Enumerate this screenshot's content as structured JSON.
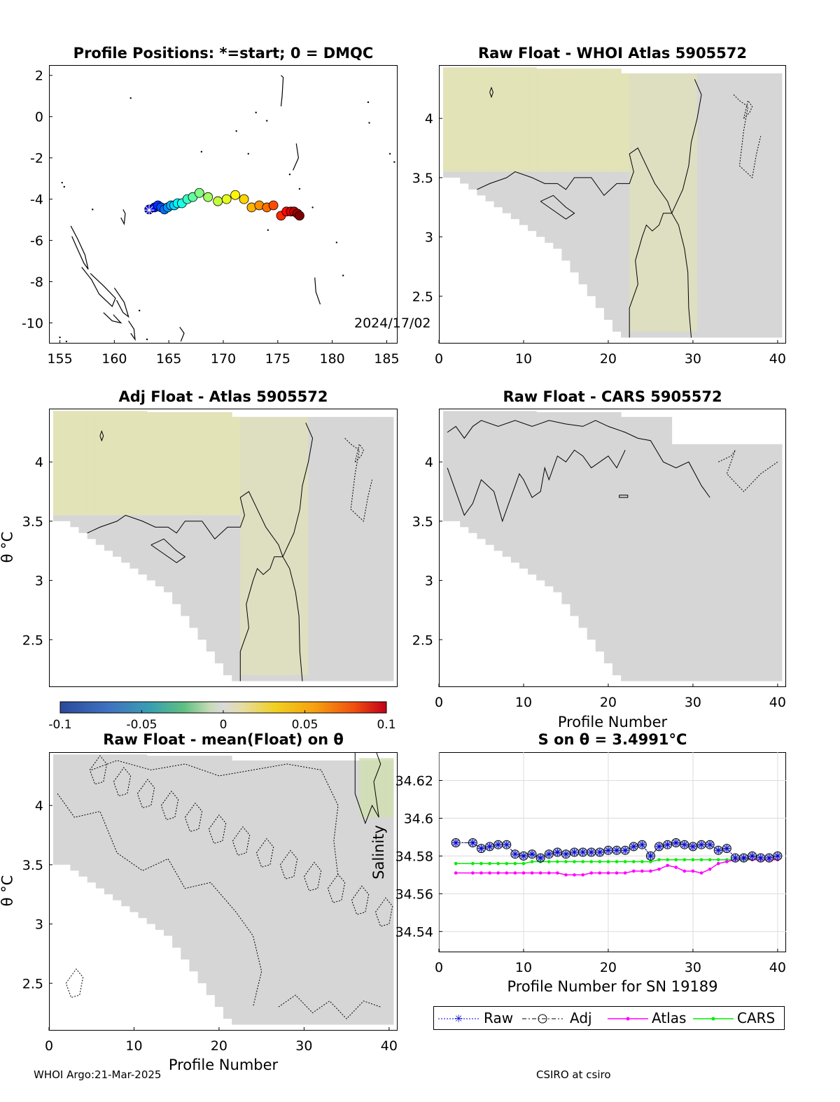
{
  "footer": {
    "left": "WHOI Argo:21-Mar-2025",
    "right": "CSIRO at csiro"
  },
  "colors": {
    "diff_bg": "#d6d6d6",
    "positive_tint": "#e6e6b0",
    "raw": "#0000cc",
    "adj": "#000000",
    "atlas": "#ff00ff",
    "cars": "#00ee00"
  },
  "chart_data": [
    {
      "type": "scatter",
      "title": "Profile Positions: *=start; 0 = DMQC",
      "xlim": [
        154,
        186
      ],
      "ylim": [
        -11,
        2.5
      ],
      "xticks": [
        "155",
        "160",
        "165",
        "170",
        "175",
        "180",
        "185"
      ],
      "xtick_values": [
        155,
        160,
        165,
        170,
        175,
        180,
        185
      ],
      "yticks": [
        "2",
        "0",
        "-2",
        "-4",
        "-6",
        "-8",
        "-10"
      ],
      "ytick_values": [
        2,
        0,
        -2,
        -4,
        -6,
        -8,
        -10
      ],
      "annotation": "2024/17/02",
      "track": {
        "lon": [
          163.2,
          163.7,
          164.0,
          164.3,
          164.6,
          164.9,
          165.2,
          165.5,
          165.8,
          166.2,
          166.7,
          167.2,
          167.8,
          168.6,
          169.5,
          170.3,
          171.1,
          171.9,
          172.6,
          173.3,
          174.0,
          174.6,
          175.3,
          175.8,
          176.2,
          176.5,
          176.8,
          177.0
        ],
        "lat": [
          -4.5,
          -4.4,
          -4.3,
          -4.4,
          -4.5,
          -4.4,
          -4.3,
          -4.3,
          -4.2,
          -4.2,
          -4.0,
          -3.9,
          -3.7,
          -3.9,
          -4.1,
          -4.0,
          -3.8,
          -4.0,
          -4.4,
          -4.3,
          -4.4,
          -4.3,
          -4.8,
          -4.6,
          -4.6,
          -4.6,
          -4.7,
          -4.8
        ]
      }
    },
    {
      "type": "heatmap",
      "title": "Raw Float - WHOI Atlas  5905572",
      "xlim": [
        0,
        41
      ],
      "ylim": [
        2.1,
        4.45
      ],
      "xticks": [
        "0",
        "10",
        "20",
        "30",
        "40"
      ],
      "xtick_values": [
        0,
        10,
        20,
        30,
        40
      ],
      "yticks": [
        "4",
        "3.5",
        "3",
        "2.5"
      ],
      "ytick_values": [
        4,
        3.5,
        3,
        2.5
      ]
    },
    {
      "type": "heatmap",
      "title": "Adj Float - Atlas  5905572",
      "xlim": [
        0,
        41
      ],
      "ylim": [
        2.1,
        4.45
      ],
      "xticks": [],
      "xtick_values": [],
      "yticks": [
        "4",
        "3.5",
        "3",
        "2.5"
      ],
      "ytick_values": [
        4,
        3.5,
        3,
        2.5
      ],
      "ylabel": "θ °C"
    },
    {
      "type": "heatmap",
      "title": "Raw Float - CARS  5905572",
      "xlim": [
        0,
        41
      ],
      "ylim": [
        2.1,
        4.45
      ],
      "xticks": [
        "0",
        "10",
        "20",
        "30",
        "40"
      ],
      "xtick_values": [
        0,
        10,
        20,
        30,
        40
      ],
      "yticks": [
        "4",
        "3.5",
        "3",
        "2.5"
      ],
      "ytick_values": [
        4,
        3.5,
        3,
        2.5
      ],
      "xlabel": "Profile Number"
    },
    {
      "type": "heatmap",
      "title": "Raw Float - mean(Float) on θ",
      "xlim": [
        0,
        41
      ],
      "ylim": [
        2.1,
        4.45
      ],
      "xticks": [
        "0",
        "10",
        "20",
        "30",
        "40"
      ],
      "xtick_values": [
        0,
        10,
        20,
        30,
        40
      ],
      "yticks": [
        "4",
        "3.5",
        "3",
        "2.5"
      ],
      "ytick_values": [
        4,
        3.5,
        3,
        2.5
      ],
      "xlabel": "Profile Number",
      "ylabel": "θ °C"
    },
    {
      "type": "line",
      "title": "S on θ = 3.4991°C",
      "xlim": [
        0,
        41
      ],
      "ylim": [
        34.529,
        34.635
      ],
      "xticks": [
        "0",
        "10",
        "20",
        "30",
        "40"
      ],
      "xtick_values": [
        0,
        10,
        20,
        30,
        40
      ],
      "yticks": [
        "34.62",
        "34.6",
        "34.58",
        "34.56",
        "34.54"
      ],
      "ytick_values": [
        34.62,
        34.6,
        34.58,
        34.56,
        34.54
      ],
      "xlabel": "Profile Number for SN 19189",
      "ylabel": "Salinity",
      "grid": true,
      "x": [
        2,
        4,
        5,
        6,
        7,
        8,
        9,
        10,
        11,
        12,
        13,
        14,
        15,
        16,
        17,
        18,
        19,
        20,
        21,
        22,
        23,
        24,
        25,
        26,
        27,
        28,
        29,
        30,
        31,
        32,
        33,
        34,
        35,
        36,
        37,
        38,
        39,
        40
      ],
      "series": [
        {
          "name": "Raw",
          "values": [
            34.587,
            34.587,
            34.584,
            34.585,
            34.586,
            34.586,
            34.581,
            34.58,
            34.581,
            34.579,
            34.581,
            34.582,
            34.581,
            34.582,
            34.582,
            34.582,
            34.582,
            34.583,
            34.583,
            34.583,
            34.585,
            34.586,
            34.58,
            34.585,
            34.586,
            34.587,
            34.586,
            34.585,
            34.586,
            34.586,
            34.583,
            34.584,
            34.579,
            34.579,
            34.58,
            34.579,
            34.579,
            34.58
          ]
        },
        {
          "name": "Adj",
          "values": [
            34.587,
            34.587,
            34.584,
            34.585,
            34.586,
            34.586,
            34.581,
            34.58,
            34.581,
            34.579,
            34.581,
            34.582,
            34.581,
            34.582,
            34.582,
            34.582,
            34.582,
            34.583,
            34.583,
            34.583,
            34.585,
            34.586,
            34.58,
            34.585,
            34.586,
            34.587,
            34.586,
            34.585,
            34.586,
            34.586,
            34.583,
            34.584,
            34.579,
            34.579,
            34.58,
            34.579,
            34.579,
            34.58
          ]
        },
        {
          "name": "Atlas",
          "values": [
            34.571,
            34.571,
            34.571,
            34.571,
            34.571,
            34.571,
            34.571,
            34.571,
            34.571,
            34.571,
            34.571,
            34.571,
            34.57,
            34.57,
            34.57,
            34.571,
            34.571,
            34.571,
            34.571,
            34.571,
            34.572,
            34.572,
            34.572,
            34.573,
            34.575,
            34.574,
            34.572,
            34.572,
            34.571,
            34.573,
            34.576,
            34.577,
            34.578,
            34.579,
            34.578,
            34.578,
            34.578,
            34.578
          ]
        },
        {
          "name": "CARS",
          "values": [
            34.576,
            34.576,
            34.576,
            34.576,
            34.576,
            34.576,
            34.576,
            34.576,
            34.577,
            34.577,
            34.577,
            34.577,
            34.577,
            34.577,
            34.577,
            34.577,
            34.577,
            34.577,
            34.577,
            34.577,
            34.577,
            34.577,
            34.577,
            34.578,
            34.578,
            34.578,
            34.578,
            34.578,
            34.578,
            34.578,
            34.578,
            34.578,
            34.578,
            34.578,
            34.578,
            34.578,
            34.578,
            34.578
          ]
        }
      ]
    }
  ],
  "colorbar": {
    "ticks": [
      "-0.1",
      "-0.05",
      "0",
      "0.05",
      "0.1"
    ],
    "tick_values": [
      -0.1,
      -0.05,
      0,
      0.05,
      0.1
    ],
    "range": [
      -0.1,
      0.1
    ]
  }
}
